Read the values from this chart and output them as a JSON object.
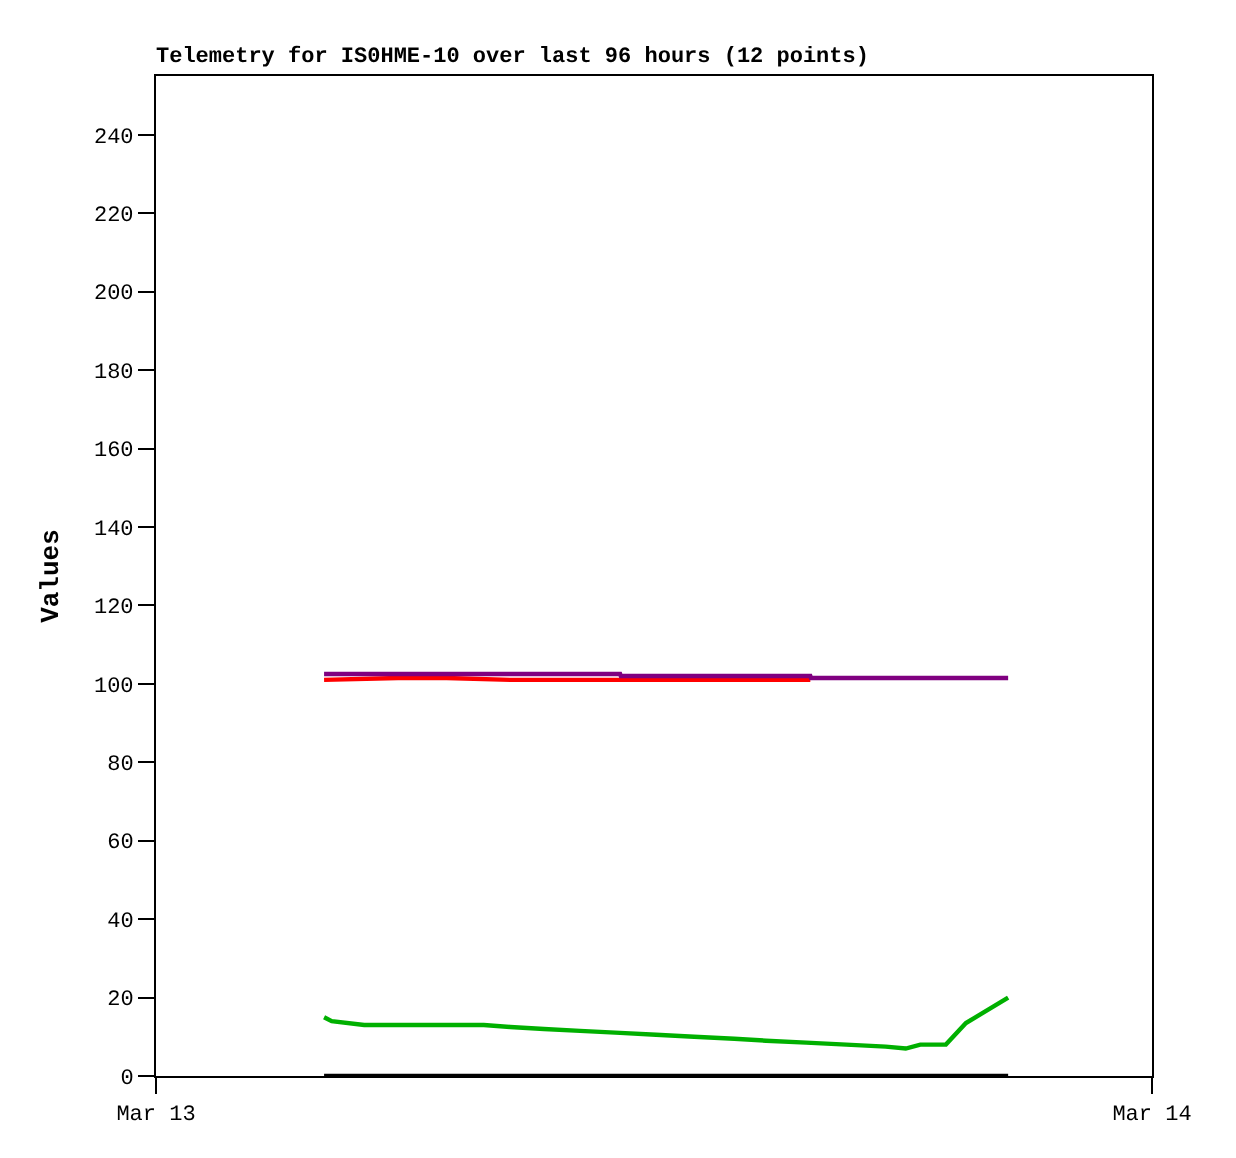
{
  "chart_data": {
    "type": "line",
    "title": "Telemetry for IS0HME-10 over last 96 hours (12 points)",
    "ylabel": "Values",
    "series": [
      {
        "color": "#ff0000",
        "x": [
          "--03-13T04:03",
          "--03-13T05:50",
          "--03-13T07:00",
          "--03-13T08:32",
          "--03-13T15:46"
        ],
        "values": [
          101,
          101.5,
          101.5,
          101,
          101
        ]
      },
      {
        "color": "#800080",
        "x": [
          "--03-13T04:03",
          "--03-13T11:11",
          "--03-13T11:12",
          "--03-13T15:46",
          "--03-13T15:47",
          "--03-13T20:32"
        ],
        "values": [
          102.5,
          102.5,
          102,
          102,
          101.5,
          101.5
        ]
      },
      {
        "color": "#00b000",
        "x": [
          "--03-13T04:03",
          "--03-13T04:14",
          "--03-13T05:01",
          "--03-13T07:54",
          "--03-13T08:32",
          "--03-13T09:21",
          "--03-13T10:13",
          "--03-13T11:11",
          "--03-13T12:03",
          "--03-13T12:58",
          "--03-13T13:56",
          "--03-13T14:42",
          "--03-13T15:40",
          "--03-13T16:38",
          "--03-13T17:35",
          "--03-13T18:04",
          "--03-13T18:25",
          "--03-13T19:02",
          "--03-13T19:31",
          "--03-13T20:32"
        ],
        "values": [
          15,
          14,
          13,
          13,
          12.5,
          12,
          11.5,
          11,
          10.5,
          10,
          9.5,
          9,
          8.5,
          8,
          7.5,
          7,
          8,
          8,
          13.5,
          20
        ]
      },
      {
        "color": "#000000",
        "x": [
          "--03-13T04:03",
          "--03-13T20:32"
        ],
        "values": [
          0,
          0
        ]
      }
    ],
    "xlim": [
      "--03-13",
      "--03-14"
    ],
    "xticks": [
      {
        "value": "--03-13",
        "label": "Mar 13"
      },
      {
        "value": "--03-14",
        "label": "Mar 14"
      }
    ],
    "ylim": [
      0,
      255
    ],
    "yticks": [
      0,
      20,
      40,
      60,
      80,
      100,
      120,
      140,
      160,
      180,
      200,
      220,
      240
    ],
    "marker": "none",
    "line_style": "solid"
  }
}
